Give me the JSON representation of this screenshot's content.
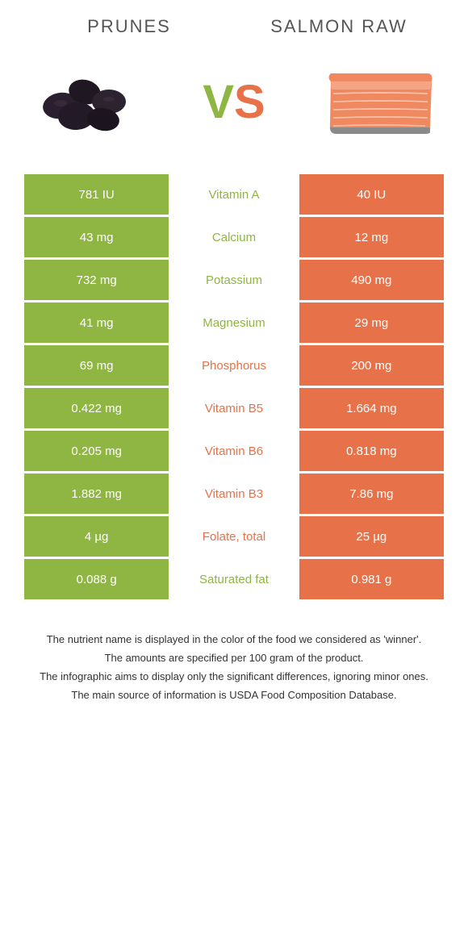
{
  "colors": {
    "left": "#8fb542",
    "right": "#e77249",
    "background": "#ffffff",
    "text": "#333333",
    "header_text": "#555555"
  },
  "header": {
    "left": "PRUNES",
    "right": "SALMON RAW",
    "vs_v": "V",
    "vs_s": "S"
  },
  "rows": [
    {
      "left": "781 IU",
      "mid": "Vitamin A",
      "right": "40 IU",
      "winner": "left"
    },
    {
      "left": "43 mg",
      "mid": "Calcium",
      "right": "12 mg",
      "winner": "left"
    },
    {
      "left": "732 mg",
      "mid": "Potassium",
      "right": "490 mg",
      "winner": "left"
    },
    {
      "left": "41 mg",
      "mid": "Magnesium",
      "right": "29 mg",
      "winner": "left"
    },
    {
      "left": "69 mg",
      "mid": "Phosphorus",
      "right": "200 mg",
      "winner": "right"
    },
    {
      "left": "0.422 mg",
      "mid": "Vitamin B5",
      "right": "1.664 mg",
      "winner": "right"
    },
    {
      "left": "0.205 mg",
      "mid": "Vitamin B6",
      "right": "0.818 mg",
      "winner": "right"
    },
    {
      "left": "1.882 mg",
      "mid": "Vitamin B3",
      "right": "7.86 mg",
      "winner": "right"
    },
    {
      "left": "4 µg",
      "mid": "Folate, total",
      "right": "25 µg",
      "winner": "right"
    },
    {
      "left": "0.088 g",
      "mid": "Saturated fat",
      "right": "0.981 g",
      "winner": "left"
    }
  ],
  "footer": {
    "line1": "The nutrient name is displayed in the color of the food we considered as 'winner'.",
    "line2": "The amounts are specified per 100 gram of the product.",
    "line3": "The infographic aims to display only the significant differences, ignoring minor ones.",
    "line4": "The main source of information is USDA Food Composition Database."
  }
}
